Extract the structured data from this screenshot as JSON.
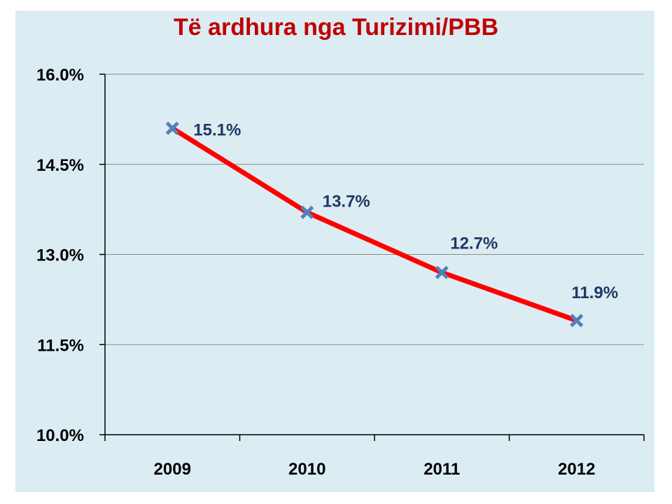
{
  "chart_data": {
    "type": "line",
    "title": "Të ardhura nga Turizimi/PBB",
    "xlabel": "",
    "ylabel": "",
    "categories": [
      "2009",
      "2010",
      "2011",
      "2012"
    ],
    "series": [
      {
        "values": [
          15.1,
          13.7,
          12.7,
          11.9
        ],
        "data_labels": [
          "15.1%",
          "13.7%",
          "12.7%",
          "11.9%"
        ],
        "line_color": "#ff0000",
        "marker_color": "#4f81bd",
        "marker": "x"
      }
    ],
    "ylim": [
      10.0,
      16.0
    ],
    "yticks": [
      10.0,
      11.5,
      13.0,
      14.5,
      16.0
    ],
    "ytick_labels": [
      "10.0%",
      "11.5%",
      "13.0%",
      "14.5%",
      "16.0%"
    ],
    "grid": true,
    "legend": "none",
    "colors": {
      "background": "#dcecf3",
      "title": "#c00000",
      "data_label": "#1f3864",
      "gridline": "#8c8c8c"
    }
  }
}
